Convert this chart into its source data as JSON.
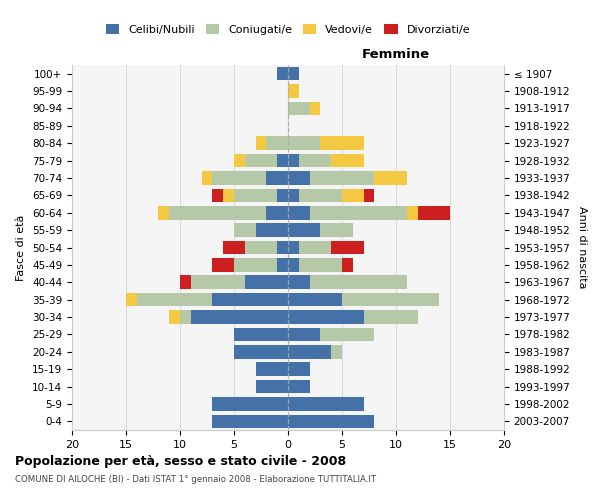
{
  "age_groups": [
    "0-4",
    "5-9",
    "10-14",
    "15-19",
    "20-24",
    "25-29",
    "30-34",
    "35-39",
    "40-44",
    "45-49",
    "50-54",
    "55-59",
    "60-64",
    "65-69",
    "70-74",
    "75-79",
    "80-84",
    "85-89",
    "90-94",
    "95-99",
    "100+"
  ],
  "birth_years": [
    "2003-2007",
    "1998-2002",
    "1993-1997",
    "1988-1992",
    "1983-1987",
    "1978-1982",
    "1973-1977",
    "1968-1972",
    "1963-1967",
    "1958-1962",
    "1953-1957",
    "1948-1952",
    "1943-1947",
    "1938-1942",
    "1933-1937",
    "1928-1932",
    "1923-1927",
    "1918-1922",
    "1913-1917",
    "1908-1912",
    "≤ 1907"
  ],
  "colors": {
    "celibe": "#4472a8",
    "coniugato": "#b5c9a8",
    "vedovo": "#f5c842",
    "divorziato": "#cc2020"
  },
  "males": {
    "celibe": [
      7,
      7,
      3,
      3,
      5,
      5,
      9,
      7,
      4,
      1,
      1,
      3,
      2,
      1,
      2,
      1,
      0,
      0,
      0,
      0,
      1
    ],
    "coniugato": [
      0,
      0,
      0,
      0,
      0,
      0,
      1,
      7,
      5,
      4,
      3,
      2,
      9,
      4,
      5,
      3,
      2,
      0,
      0,
      0,
      0
    ],
    "vedovo": [
      0,
      0,
      0,
      0,
      0,
      0,
      1,
      1,
      0,
      0,
      0,
      0,
      1,
      1,
      1,
      1,
      1,
      0,
      0,
      0,
      0
    ],
    "divorziato": [
      0,
      0,
      0,
      0,
      0,
      0,
      0,
      0,
      1,
      2,
      2,
      0,
      0,
      1,
      0,
      0,
      0,
      0,
      0,
      0,
      0
    ]
  },
  "females": {
    "nubile": [
      8,
      7,
      2,
      2,
      4,
      3,
      7,
      5,
      2,
      1,
      1,
      3,
      2,
      1,
      2,
      1,
      0,
      0,
      0,
      0,
      1
    ],
    "coniugata": [
      0,
      0,
      0,
      0,
      1,
      5,
      5,
      9,
      9,
      4,
      3,
      3,
      9,
      4,
      6,
      3,
      3,
      0,
      2,
      0,
      0
    ],
    "vedova": [
      0,
      0,
      0,
      0,
      0,
      0,
      0,
      0,
      0,
      0,
      0,
      0,
      1,
      2,
      3,
      3,
      4,
      0,
      1,
      1,
      0
    ],
    "divorziata": [
      0,
      0,
      0,
      0,
      0,
      0,
      0,
      0,
      0,
      1,
      3,
      0,
      3,
      1,
      0,
      0,
      0,
      0,
      0,
      0,
      0
    ]
  },
  "xlim": 20,
  "title": "Popolazione per età, sesso e stato civile - 2008",
  "subtitle": "COMUNE DI AILOCHE (BI) - Dati ISTAT 1° gennaio 2008 - Elaborazione TUTTITALIA.IT",
  "xlabel_right": "Femmine",
  "ylabel_left": "Fasce di età",
  "ylabel_right": "Anni di nascita",
  "legend_labels": [
    "Celibi/Nubili",
    "Coniugati/e",
    "Vedovi/e",
    "Divorziati/e"
  ],
  "bg_color": "#f5f5f5",
  "grid_color": "#cccccc"
}
